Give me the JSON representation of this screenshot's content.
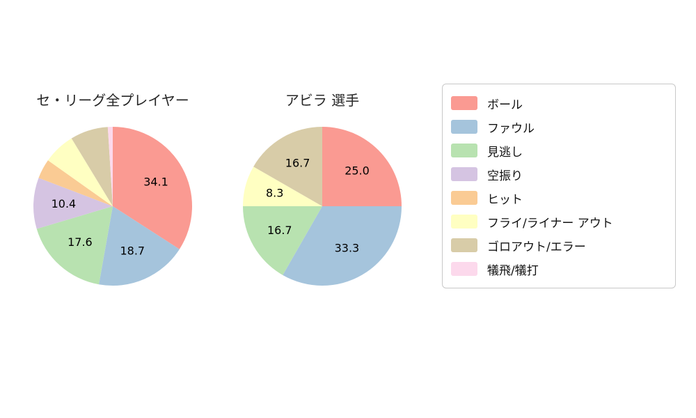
{
  "chart_data": [
    {
      "type": "pie",
      "title": "セ・リーグ全プレイヤー",
      "start_angle_deg": 0,
      "direction": "clockwise",
      "slices": [
        {
          "name": "ボール",
          "value": 34.1,
          "label": "34.1",
          "color": "#FA9A92"
        },
        {
          "name": "ファウル",
          "value": 18.7,
          "label": "18.7",
          "color": "#A5C4DC"
        },
        {
          "name": "見逃し",
          "value": 17.6,
          "label": "17.6",
          "color": "#B8E2B0"
        },
        {
          "name": "空振り",
          "value": 10.4,
          "label": "10.4",
          "color": "#D5C4E2"
        },
        {
          "name": "ヒット",
          "value": 4.0,
          "label": "",
          "color": "#FACB94"
        },
        {
          "name": "フライ/ライナー アウト",
          "value": 6.5,
          "label": "",
          "color": "#FFFFC2"
        },
        {
          "name": "ゴロアウト/エラー",
          "value": 7.7,
          "label": "",
          "color": "#D8CCA8"
        },
        {
          "name": "犠飛/犠打",
          "value": 1.0,
          "label": "",
          "color": "#FCD9EC"
        }
      ]
    },
    {
      "type": "pie",
      "title": "アビラ 選手",
      "start_angle_deg": 0,
      "direction": "clockwise",
      "slices": [
        {
          "name": "ボール",
          "value": 25.0,
          "label": "25.0",
          "color": "#FA9A92"
        },
        {
          "name": "ファウル",
          "value": 33.3,
          "label": "33.3",
          "color": "#A5C4DC"
        },
        {
          "name": "見逃し",
          "value": 16.7,
          "label": "16.7",
          "color": "#B8E2B0"
        },
        {
          "name": "フライ/ライナー アウト",
          "value": 8.3,
          "label": "8.3",
          "color": "#FFFFC2"
        },
        {
          "name": "ゴロアウト/エラー",
          "value": 16.7,
          "label": "16.7",
          "color": "#D8CCA8"
        }
      ]
    }
  ],
  "legend": {
    "position": "right",
    "items": [
      {
        "label": "ボール",
        "color": "#FA9A92"
      },
      {
        "label": "ファウル",
        "color": "#A5C4DC"
      },
      {
        "label": "見逃し",
        "color": "#B8E2B0"
      },
      {
        "label": "空振り",
        "color": "#D5C4E2"
      },
      {
        "label": "ヒット",
        "color": "#FACB94"
      },
      {
        "label": "フライ/ライナー アウト",
        "color": "#FFFFC2"
      },
      {
        "label": "ゴロアウト/エラー",
        "color": "#D8CCA8"
      },
      {
        "label": "犠飛/犠打",
        "color": "#FCD9EC"
      }
    ]
  },
  "style": {
    "pie_label_color": "#000000",
    "pie_label_font_size": 16,
    "background": "#ffffff"
  }
}
